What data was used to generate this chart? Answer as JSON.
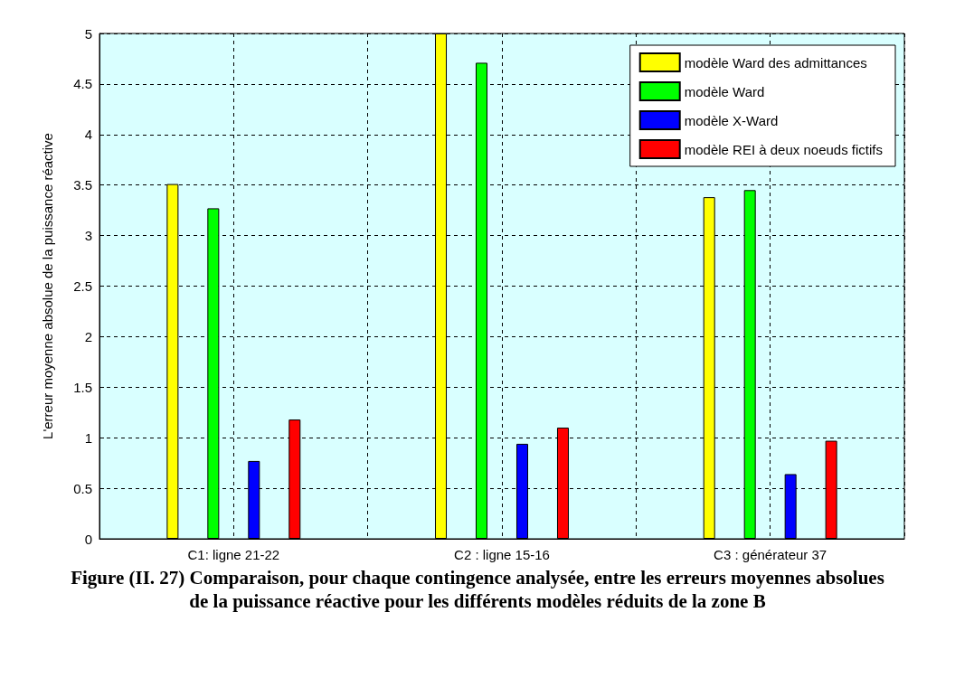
{
  "chart_data": {
    "type": "bar",
    "title": "Figure (II. 27) Comparaison, pour chaque contingence analysée, entre les erreurs moyennes absolues de la puissance réactive pour les différents modèles réduits de la zone B",
    "ylabel": "L'erreur moyenne absolue de la puissance réactive",
    "categories": [
      "C1: ligne 21-22",
      "C2 : ligne 15-16",
      "C3 : générateur 37"
    ],
    "series": [
      {
        "name": "modèle Ward des admittances",
        "color": "#ffff00",
        "values": [
          3.51,
          5.0,
          3.38
        ]
      },
      {
        "name": "modèle Ward",
        "color": "#00ff00",
        "values": [
          3.27,
          4.71,
          3.45
        ]
      },
      {
        "name": "modèle X-Ward",
        "color": "#0000ff",
        "values": [
          0.77,
          0.94,
          0.64
        ]
      },
      {
        "name": "modèle REI à deux noeuds fictifs",
        "color": "#ff0000",
        "values": [
          1.18,
          1.1,
          0.97
        ]
      }
    ],
    "ylim": [
      0,
      5
    ],
    "yticks": [
      0,
      0.5,
      1,
      1.5,
      2,
      2.5,
      3,
      3.5,
      4,
      4.5,
      5
    ],
    "grid": true,
    "legend": "top right"
  }
}
